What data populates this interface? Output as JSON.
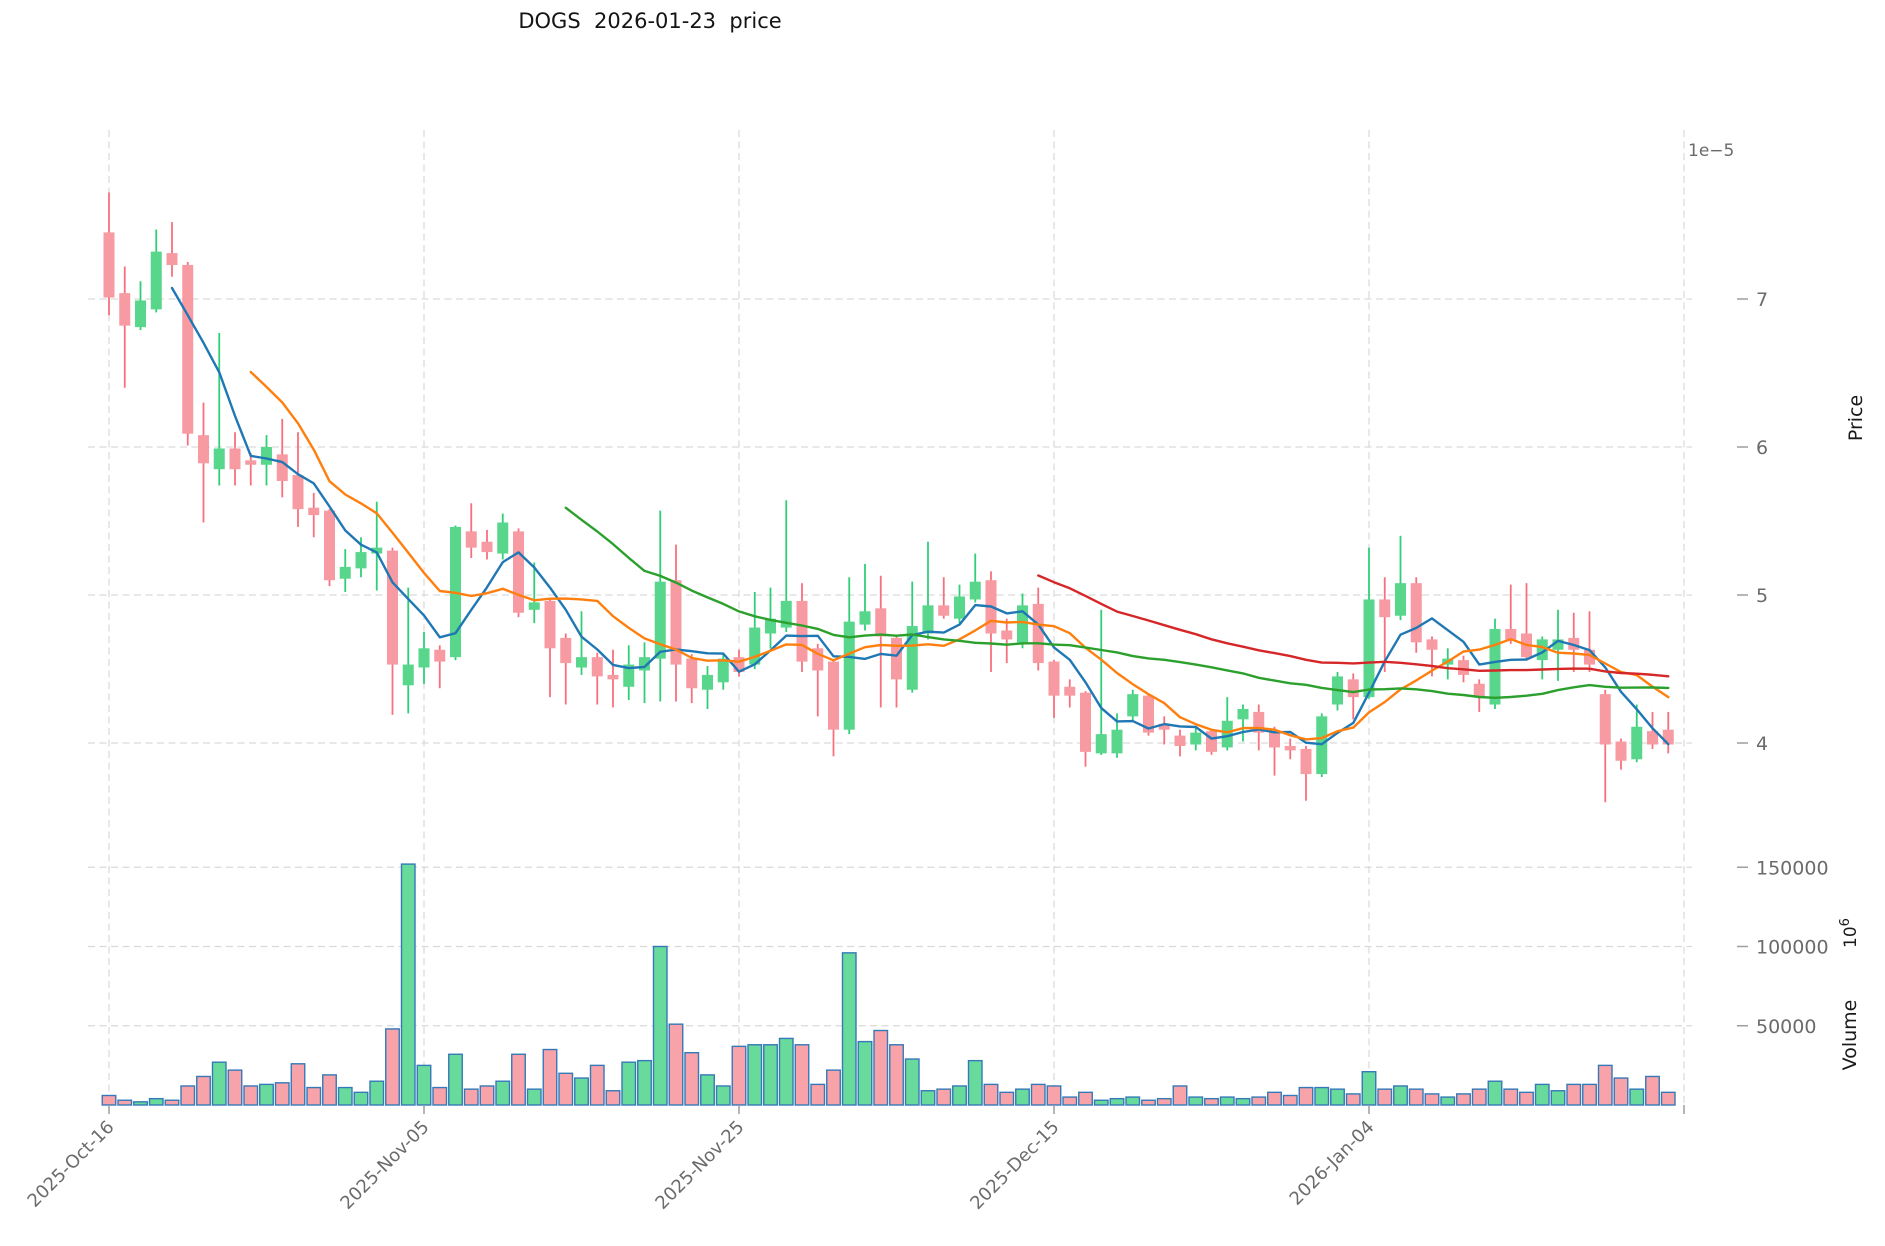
{
  "title": "DOGS  2026-01-23  price",
  "axes": {
    "offset_label": "1e−5",
    "price_axis_label": "Price",
    "volume_axis_label": "Volume",
    "volume_exp_base": "10",
    "volume_exp_sup": "6",
    "price_ticks": [
      {
        "label": "7",
        "value": 7
      },
      {
        "label": "6",
        "value": 6
      },
      {
        "label": "5",
        "value": 5
      },
      {
        "label": "4",
        "value": 4
      }
    ],
    "volume_ticks": [
      {
        "label": "150000",
        "value": 150000
      },
      {
        "label": "100000",
        "value": 100000
      },
      {
        "label": "50000",
        "value": 50000
      }
    ],
    "x_ticks": [
      {
        "label": "2025-Oct-16",
        "day": 0
      },
      {
        "label": "2025-Nov-05",
        "day": 20
      },
      {
        "label": "2025-Nov-25",
        "day": 40
      },
      {
        "label": "2025-Dec-15",
        "day": 60
      },
      {
        "label": "2026-Jan-04",
        "day": 80
      },
      {
        "label": "",
        "day": 100
      }
    ]
  },
  "colors": {
    "up_body": "#57d68c",
    "up_wick": "#2fcf77",
    "down_body": "#f79aa2",
    "down_wick": "#f8707e",
    "volume_up": "#68da9b",
    "volume_down": "#f8a2aa",
    "volume_edge": "#3579b8",
    "grid": "#d9d9d9",
    "tick_text": "#6b6b6b",
    "title_text": "#141414"
  },
  "chart_data": {
    "type": "candlestick+volume",
    "symbol": "DOGS",
    "as_of_date": "2026-01-23",
    "start_date": "2025-10-16",
    "end_date": "2026-01-23",
    "frequency": "daily",
    "n_days": 100,
    "price_scale_factor": "1e-5",
    "price_ylim": [
      3.4,
      8.15
    ],
    "volume_ylim": [
      0,
      160000
    ],
    "volume_unit": "1e6",
    "grid": "dashed",
    "legend": "none",
    "moving_averages": [
      {
        "name": "MA5",
        "period": 5,
        "color": "#1f77b4"
      },
      {
        "name": "MA10",
        "period": 10,
        "color": "#ff7f0e"
      },
      {
        "name": "MA30",
        "period": 30,
        "color": "#2ca02c"
      },
      {
        "name": "MA60",
        "period": 60,
        "color": "#d62728"
      }
    ],
    "ohlc": [
      [
        7.45,
        7.72,
        6.89,
        7.01
      ],
      [
        7.04,
        7.22,
        6.4,
        6.82
      ],
      [
        6.81,
        7.12,
        6.79,
        6.99
      ],
      [
        6.93,
        7.47,
        6.91,
        7.32
      ],
      [
        7.31,
        7.52,
        7.15,
        7.23
      ],
      [
        7.23,
        7.25,
        6.01,
        6.09
      ],
      [
        6.08,
        6.3,
        5.49,
        5.89
      ],
      [
        5.85,
        6.77,
        5.74,
        5.99
      ],
      [
        5.99,
        6.1,
        5.74,
        5.85
      ],
      [
        5.91,
        5.96,
        5.74,
        5.88
      ],
      [
        5.88,
        6.08,
        5.74,
        6.0
      ],
      [
        5.95,
        6.19,
        5.66,
        5.77
      ],
      [
        5.81,
        6.1,
        5.46,
        5.58
      ],
      [
        5.59,
        5.69,
        5.39,
        5.54
      ],
      [
        5.57,
        5.58,
        5.06,
        5.1
      ],
      [
        5.11,
        5.31,
        5.02,
        5.19
      ],
      [
        5.18,
        5.39,
        5.12,
        5.29
      ],
      [
        5.28,
        5.63,
        5.03,
        5.32
      ],
      [
        5.3,
        5.32,
        4.19,
        4.53
      ],
      [
        4.39,
        5.05,
        4.2,
        4.53
      ],
      [
        4.51,
        4.75,
        4.4,
        4.64
      ],
      [
        4.63,
        4.66,
        4.37,
        4.55
      ],
      [
        4.58,
        5.47,
        4.56,
        5.46
      ],
      [
        5.43,
        5.62,
        5.25,
        5.32
      ],
      [
        5.36,
        5.44,
        5.24,
        5.29
      ],
      [
        5.28,
        5.55,
        5.24,
        5.49
      ],
      [
        5.43,
        5.45,
        4.85,
        4.88
      ],
      [
        4.9,
        5.22,
        4.81,
        4.95
      ],
      [
        4.96,
        4.97,
        4.31,
        4.64
      ],
      [
        4.71,
        4.74,
        4.26,
        4.54
      ],
      [
        4.51,
        4.89,
        4.46,
        4.58
      ],
      [
        4.58,
        4.61,
        4.26,
        4.45
      ],
      [
        4.46,
        4.63,
        4.24,
        4.43
      ],
      [
        4.38,
        4.66,
        4.29,
        4.53
      ],
      [
        4.49,
        4.68,
        4.27,
        4.58
      ],
      [
        4.57,
        5.57,
        4.28,
        5.09
      ],
      [
        5.1,
        5.34,
        4.28,
        4.53
      ],
      [
        4.57,
        4.6,
        4.27,
        4.37
      ],
      [
        4.36,
        4.52,
        4.23,
        4.46
      ],
      [
        4.41,
        4.6,
        4.36,
        4.57
      ],
      [
        4.58,
        4.63,
        4.45,
        4.48
      ],
      [
        4.53,
        5.02,
        4.5,
        4.78
      ],
      [
        4.74,
        5.05,
        4.64,
        4.84
      ],
      [
        4.78,
        5.64,
        4.75,
        4.96
      ],
      [
        4.96,
        5.08,
        4.48,
        4.55
      ],
      [
        4.64,
        4.67,
        4.18,
        4.49
      ],
      [
        4.55,
        4.56,
        3.91,
        4.09
      ],
      [
        4.09,
        5.12,
        4.06,
        4.82
      ],
      [
        4.8,
        5.21,
        4.76,
        4.89
      ],
      [
        4.91,
        5.13,
        4.24,
        4.72
      ],
      [
        4.71,
        4.72,
        4.24,
        4.43
      ],
      [
        4.36,
        5.09,
        4.34,
        4.79
      ],
      [
        4.74,
        5.36,
        4.7,
        4.93
      ],
      [
        4.93,
        5.12,
        4.84,
        4.86
      ],
      [
        4.84,
        5.07,
        4.81,
        4.99
      ],
      [
        4.97,
        5.28,
        4.95,
        5.09
      ],
      [
        5.1,
        5.16,
        4.48,
        4.74
      ],
      [
        4.76,
        4.84,
        4.54,
        4.7
      ],
      [
        4.68,
        5.01,
        4.64,
        4.93
      ],
      [
        4.94,
        5.05,
        4.49,
        4.54
      ],
      [
        4.55,
        4.56,
        4.17,
        4.32
      ],
      [
        4.38,
        4.43,
        4.24,
        4.32
      ],
      [
        4.34,
        4.35,
        3.84,
        3.94
      ],
      [
        3.93,
        4.9,
        3.92,
        4.06
      ],
      [
        3.93,
        4.2,
        3.9,
        4.09
      ],
      [
        4.18,
        4.36,
        4.15,
        4.33
      ],
      [
        4.32,
        4.33,
        4.05,
        4.07
      ],
      [
        4.13,
        4.18,
        3.99,
        4.09
      ],
      [
        4.05,
        4.09,
        3.91,
        3.98
      ],
      [
        3.99,
        4.1,
        3.95,
        4.07
      ],
      [
        4.08,
        4.09,
        3.92,
        3.94
      ],
      [
        3.97,
        4.31,
        3.95,
        4.15
      ],
      [
        4.16,
        4.26,
        4.01,
        4.23
      ],
      [
        4.21,
        4.26,
        3.95,
        4.07
      ],
      [
        4.08,
        4.11,
        3.78,
        3.97
      ],
      [
        3.98,
        4.03,
        3.89,
        3.95
      ],
      [
        3.96,
        3.98,
        3.61,
        3.79
      ],
      [
        3.79,
        4.2,
        3.77,
        4.18
      ],
      [
        4.26,
        4.48,
        4.22,
        4.45
      ],
      [
        4.43,
        4.47,
        4.16,
        4.31
      ],
      [
        4.31,
        5.32,
        4.3,
        4.97
      ],
      [
        4.97,
        5.12,
        4.48,
        4.85
      ],
      [
        4.86,
        5.4,
        4.83,
        5.08
      ],
      [
        5.08,
        5.12,
        4.61,
        4.68
      ],
      [
        4.7,
        4.72,
        4.45,
        4.63
      ],
      [
        4.53,
        4.64,
        4.43,
        4.57
      ],
      [
        4.56,
        4.59,
        4.41,
        4.46
      ],
      [
        4.4,
        4.43,
        4.21,
        4.31
      ],
      [
        4.26,
        4.84,
        4.23,
        4.77
      ],
      [
        4.77,
        5.07,
        4.67,
        4.7
      ],
      [
        4.74,
        5.08,
        4.56,
        4.58
      ],
      [
        4.56,
        4.72,
        4.43,
        4.7
      ],
      [
        4.63,
        4.9,
        4.42,
        4.7
      ],
      [
        4.71,
        4.88,
        4.48,
        4.63
      ],
      [
        4.63,
        4.89,
        4.48,
        4.53
      ],
      [
        4.33,
        4.36,
        3.6,
        3.99
      ],
      [
        4.01,
        4.03,
        3.82,
        3.88
      ],
      [
        3.89,
        4.26,
        3.87,
        4.11
      ],
      [
        4.08,
        4.21,
        3.96,
        3.99
      ],
      [
        4.09,
        4.21,
        3.93,
        3.99
      ]
    ],
    "volume": [
      6000,
      3000,
      2000,
      4000,
      3000,
      12000,
      18000,
      27000,
      22000,
      12000,
      13000,
      14000,
      26000,
      11000,
      19000,
      11000,
      8000,
      15000,
      48000,
      152000,
      25000,
      11000,
      32000,
      10000,
      12000,
      15000,
      32000,
      10000,
      35000,
      20000,
      17000,
      25000,
      9000,
      27000,
      28000,
      100000,
      51000,
      33000,
      19000,
      12000,
      37000,
      38000,
      38000,
      42000,
      38000,
      13000,
      22000,
      96000,
      40000,
      47000,
      38000,
      29000,
      9000,
      10000,
      12000,
      28000,
      13000,
      8000,
      10000,
      13000,
      12000,
      5000,
      8000,
      3000,
      4000,
      5000,
      3000,
      4000,
      12000,
      5000,
      4000,
      5000,
      4000,
      5000,
      8000,
      6000,
      11000,
      11000,
      10000,
      7000,
      21000,
      10000,
      12000,
      10000,
      7000,
      5000,
      7000,
      10000,
      15000,
      10000,
      8000,
      13000,
      9000,
      13000,
      13000,
      25000,
      17000,
      10000,
      18000,
      8000
    ]
  }
}
